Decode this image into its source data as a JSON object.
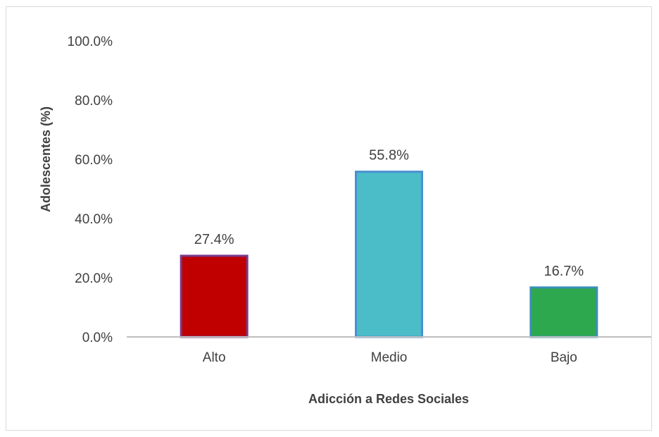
{
  "chart_data": {
    "type": "bar",
    "categories": [
      "Alto",
      "Medio",
      "Bajo"
    ],
    "values": [
      27.4,
      55.8,
      16.7
    ],
    "data_labels": [
      "27.4%",
      "55.8%",
      "16.7%"
    ],
    "colors": [
      "#c00000",
      "#4bbdc8",
      "#2ea84e"
    ],
    "bar_edge_colors": [
      "#7a3a8c",
      "#4a90d0",
      "#3a8fb8"
    ],
    "xlabel": "Adicción a Redes Sociales",
    "ylabel": "Adolescentes (%)",
    "ylim": [
      0,
      100
    ],
    "yticks": [
      0,
      20,
      40,
      60,
      80,
      100
    ],
    "ytick_labels": [
      "0.0%",
      "20.0%",
      "40.0%",
      "60.0%",
      "80.0%",
      "100.0%"
    ],
    "grid": false,
    "legend": "none"
  }
}
